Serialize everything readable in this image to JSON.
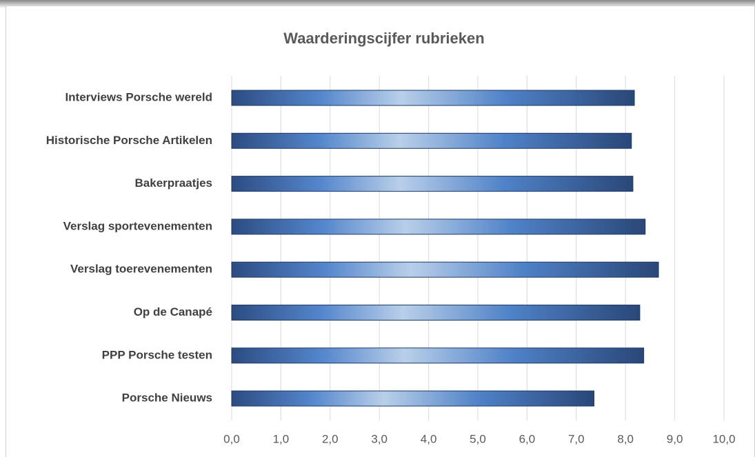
{
  "chart_data": {
    "type": "bar",
    "orientation": "horizontal",
    "title": "Waarderingscijfer rubrieken",
    "categories": [
      "Interviews Porsche wereld",
      "Historische Porsche Artikelen",
      "Bakerpraatjes",
      "Verslag sportevenementen",
      "Verslag toerevenementen",
      "Op de Canapé",
      "PPP Porsche testen",
      "Porsche Nieuws"
    ],
    "values": [
      8.18,
      8.12,
      8.15,
      8.4,
      8.67,
      8.29,
      8.37,
      7.36
    ],
    "color": "#4a7cc4",
    "xlim": [
      0,
      10
    ],
    "xticks": [
      {
        "value": 0,
        "label": "0,0"
      },
      {
        "value": 1,
        "label": "1,0"
      },
      {
        "value": 2,
        "label": "2,0"
      },
      {
        "value": 3,
        "label": "3,0"
      },
      {
        "value": 4,
        "label": "4,0"
      },
      {
        "value": 5,
        "label": "5,0"
      },
      {
        "value": 6,
        "label": "6,0"
      },
      {
        "value": 7,
        "label": "7,0"
      },
      {
        "value": 8,
        "label": "8,0"
      },
      {
        "value": 9,
        "label": "9,0"
      },
      {
        "value": 10,
        "label": "10,0"
      }
    ],
    "grid": true
  }
}
